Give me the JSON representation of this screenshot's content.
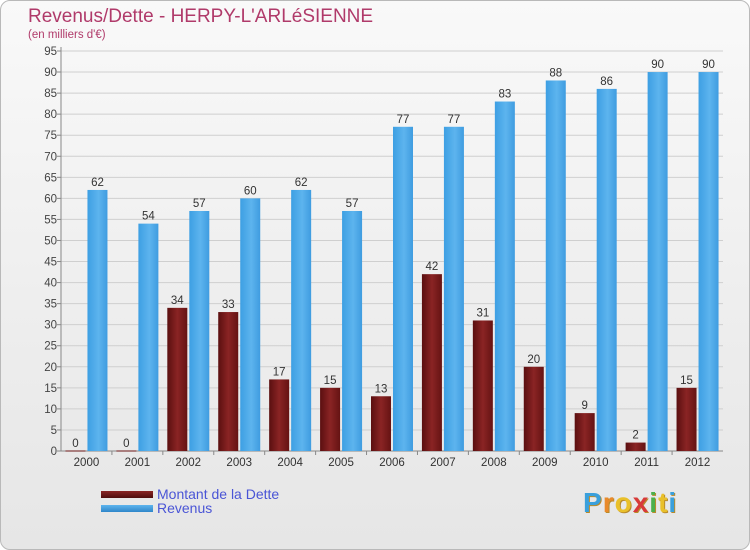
{
  "chart_data": {
    "type": "bar",
    "title": "Revenus/Dette - HERPY-L'ARLéSIENNE",
    "subtitle": "(en milliers d'€)",
    "categories": [
      "2000",
      "2001",
      "2002",
      "2003",
      "2004",
      "2005",
      "2006",
      "2007",
      "2008",
      "2009",
      "2010",
      "2011",
      "2012"
    ],
    "series": [
      {
        "name": "Montant de la Dette",
        "color": "#7a1a1a",
        "values": [
          0,
          0,
          34,
          33,
          17,
          15,
          13,
          42,
          31,
          20,
          9,
          2,
          15
        ]
      },
      {
        "name": "Revenus",
        "color": "#3d9fe3",
        "values": [
          62,
          54,
          57,
          60,
          62,
          57,
          77,
          77,
          83,
          88,
          86,
          90,
          90
        ]
      }
    ],
    "yticks": [
      0,
      5,
      10,
      15,
      20,
      25,
      30,
      35,
      40,
      45,
      50,
      55,
      60,
      65,
      70,
      75,
      80,
      85,
      90,
      95
    ],
    "ylim": [
      0,
      95
    ],
    "xlabel": "",
    "ylabel": "",
    "grid": true,
    "legend_position": "bottom-left"
  },
  "logo": {
    "letters": [
      {
        "ch": "P",
        "color": "#3aa0dc"
      },
      {
        "ch": "r",
        "color": "#e98a2a"
      },
      {
        "ch": "o",
        "color": "#e9c02a"
      },
      {
        "ch": "x",
        "color": "#d83a3a"
      },
      {
        "ch": "i",
        "color": "#4bb04b"
      },
      {
        "ch": "t",
        "color": "#e9c02a"
      },
      {
        "ch": "i",
        "color": "#3aa0dc"
      }
    ]
  }
}
